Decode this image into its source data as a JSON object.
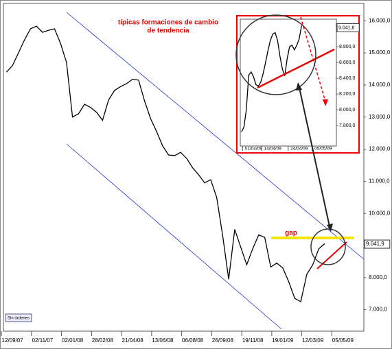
{
  "chart_data": [
    {
      "type": "line",
      "categories": [
        null,
        "12/09/07",
        null,
        null,
        null,
        null,
        "02/11/07",
        null,
        null,
        null,
        null,
        "02/01/08",
        null,
        null,
        null,
        null,
        "28/02/08",
        null,
        null,
        null,
        null,
        "21/04/08",
        null,
        null,
        null,
        null,
        "13/06/08",
        null,
        null,
        null,
        null,
        "06/08/08",
        null,
        null,
        null,
        null,
        "26/09/08",
        null,
        null,
        null,
        null,
        "19/11/08",
        null,
        null,
        null,
        null,
        "19/01/09",
        null,
        null,
        null,
        null,
        "12/03/09",
        null,
        null,
        null,
        null,
        "05/05/09",
        null,
        null,
        null
      ],
      "series": [
        {
          "color": "#000000",
          "values": [
            14400,
            14600,
            15000,
            15400,
            15750,
            15830,
            15640,
            15700,
            15750,
            15300,
            14700,
            13000,
            13100,
            13400,
            13300,
            13150,
            12900,
            13530,
            13830,
            13950,
            14040,
            14180,
            14150,
            13500,
            12950,
            12550,
            12100,
            11820,
            11800,
            11900,
            11710,
            11420,
            11200,
            10950,
            11050,
            10500,
            9300,
            7950,
            9500,
            8950,
            8400,
            8900,
            9330,
            9250,
            8330,
            8450,
            8300,
            7870,
            7350,
            7250,
            8100,
            8400,
            8900,
            9060,
            null,
            null,
            null,
            null,
            null,
            null
          ]
        }
      ],
      "last_label": {
        "value": 9041.9,
        "label": "9.041,9"
      },
      "ylim": [
        6330,
        16540
      ],
      "yticks": [
        {
          "value": 7000,
          "label": "7.000,0"
        },
        {
          "value": 8000,
          "label": "8.000,0"
        },
        {
          "value": 9000,
          "label": "9.000,0"
        },
        {
          "value": 10000,
          "label": "10.000,0"
        },
        {
          "value": 11000,
          "label": "11.000,0"
        },
        {
          "value": 12000,
          "label": "12.000,0"
        },
        {
          "value": 13000,
          "label": "13.000,0"
        },
        {
          "value": 14000,
          "label": "14.000,0"
        },
        {
          "value": 15000,
          "label": "15.000,0"
        },
        {
          "value": 16000,
          "label": "16.000,0"
        }
      ],
      "annotations": [
        "típicas formaciones de cambio",
        "de tendencia",
        "gap"
      ]
    },
    {
      "type": "line",
      "categories": [
        null,
        null,
        null,
        null,
        null,
        "01/04/09",
        null,
        null,
        null,
        null,
        null,
        null,
        null,
        "14/04/09",
        null,
        null,
        null,
        null,
        null,
        null,
        null,
        null,
        null,
        null,
        "24/04/09",
        null,
        null,
        null,
        null,
        null,
        null,
        null,
        null,
        null,
        "05/05/09",
        null,
        null,
        null,
        null,
        null
      ],
      "series": [
        {
          "color": "#000000",
          "values": [
            7720,
            7780,
            8000,
            8440,
            8480,
            8420,
            8320,
            8300,
            8350,
            8460,
            8600,
            8750,
            8880,
            8960,
            8980,
            8880,
            8680,
            8520,
            8430,
            8650,
            8800,
            8820,
            8760,
            8820,
            8900,
            9070,
            null,
            null,
            null,
            null,
            null,
            null,
            null,
            null,
            null,
            null,
            null,
            null,
            null,
            null
          ]
        }
      ],
      "last_label": {
        "value": 9041.8,
        "label": "9.041,8"
      },
      "ylim": [
        7540,
        9150
      ],
      "yticks": [
        {
          "value": 7800,
          "label": "7.800,0"
        },
        {
          "value": 8000,
          "label": "8.000,0"
        },
        {
          "value": 8200,
          "label": "8.200,0"
        },
        {
          "value": 8400,
          "label": "8.400,0"
        },
        {
          "value": 8600,
          "label": "8.600,0"
        },
        {
          "value": 8800,
          "label": "8.800,0"
        }
      ]
    }
  ],
  "status_label": "Sin órdenes"
}
